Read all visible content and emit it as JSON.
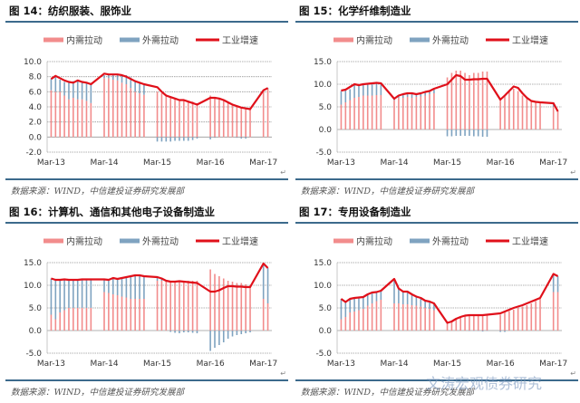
{
  "legend": {
    "domestic": "内需拉动",
    "external": "外需拉动",
    "industry": "工业增速"
  },
  "colors": {
    "domestic": "#f28c8c",
    "external": "#7fa3c0",
    "industry": "#e0101a",
    "rule": "#3c6a8c"
  },
  "source_text": "数据来源：WIND，中信建投证券研究发展部",
  "return_mark": "↵",
  "watermark": "文涛宏观债券研究",
  "x_ticks": [
    "Mar-13",
    "Mar-14",
    "Mar-15",
    "Mar-16",
    "Mar-17"
  ],
  "chart_data": [
    {
      "type": "bar",
      "title": "图 14：纺织服装、服饰业",
      "ylim": [
        -2,
        10
      ],
      "yticks": [
        "10.0",
        "8.0",
        "6.0",
        "4.0",
        "2.0",
        "0.0",
        "-2.0"
      ],
      "ytick_values": [
        10,
        8,
        6,
        4,
        2,
        0,
        -2
      ],
      "months": [
        "Mar-13",
        "Apr-13",
        "May-13",
        "Jun-13",
        "Jul-13",
        "Aug-13",
        "Sep-13",
        "Oct-13",
        "Nov-13",
        "Dec-13",
        "Mar-14",
        "Apr-14",
        "May-14",
        "Jun-14",
        "Jul-14",
        "Aug-14",
        "Sep-14",
        "Oct-14",
        "Nov-14",
        "Dec-14",
        "Mar-15",
        "Apr-15",
        "May-15",
        "Jun-15",
        "Jul-15",
        "Aug-15",
        "Sep-15",
        "Oct-15",
        "Nov-15",
        "Dec-15",
        "Mar-16",
        "Apr-16",
        "May-16",
        "Jun-16",
        "Jul-16",
        "Aug-16",
        "Sep-16",
        "Oct-16",
        "Nov-16",
        "Dec-16",
        "Mar-17",
        "Apr-17"
      ],
      "series": [
        {
          "name": "内需拉动",
          "values": [
            6.2,
            6.0,
            6.0,
            5.5,
            5.0,
            5.2,
            5.0,
            5.0,
            4.8,
            4.5,
            7.8,
            7.8,
            7.6,
            7.5,
            7.2,
            7.0,
            6.5,
            6.0,
            5.8,
            5.6,
            6.0,
            5.8,
            5.6,
            5.4,
            5.2,
            5.0,
            4.9,
            4.8,
            4.7,
            4.5,
            5.5,
            5.3,
            5.1,
            4.9,
            4.6,
            4.3,
            4.1,
            4.0,
            3.9,
            3.8,
            6.2,
            6.4
          ]
        },
        {
          "name": "外需拉动",
          "values": [
            1.5,
            2.0,
            1.6,
            1.8,
            2.2,
            2.2,
            2.4,
            2.3,
            2.4,
            2.6,
            0.4,
            0.5,
            0.7,
            0.8,
            1.0,
            1.2,
            1.4,
            1.5,
            1.4,
            1.3,
            -0.6,
            -0.6,
            -0.6,
            -0.6,
            -0.5,
            -0.5,
            -0.5,
            -0.5,
            -0.4,
            -0.2,
            -0.3,
            -0.1,
            0,
            0,
            0,
            0,
            -0.1,
            -0.2,
            -0.2,
            0,
            0,
            0.1
          ]
        },
        {
          "name": "工业增速",
          "values": [
            7.7,
            8.1,
            7.8,
            7.5,
            7.3,
            7.2,
            7.5,
            7.3,
            7.2,
            7.0,
            8.4,
            8.3,
            8.3,
            8.3,
            8.2,
            8.0,
            7.7,
            7.4,
            7.2,
            7.0,
            6.6,
            6.0,
            5.5,
            5.3,
            5.1,
            4.9,
            4.9,
            4.7,
            4.5,
            4.3,
            5.2,
            5.2,
            5.1,
            4.9,
            4.6,
            4.3,
            4.1,
            3.9,
            3.8,
            3.7,
            6.2,
            6.5
          ]
        }
      ]
    },
    {
      "type": "bar",
      "title": "图 15：化学纤维制造业",
      "ylim": [
        -5,
        15
      ],
      "yticks": [
        "15.0",
        "10.0",
        "5.0",
        "0.0",
        "-5.0"
      ],
      "ytick_values": [
        15,
        10,
        5,
        0,
        -5
      ],
      "months": [
        "Mar-13",
        "Apr-13",
        "May-13",
        "Jun-13",
        "Jul-13",
        "Aug-13",
        "Sep-13",
        "Oct-13",
        "Nov-13",
        "Dec-13",
        "Mar-14",
        "Apr-14",
        "May-14",
        "Jun-14",
        "Jul-14",
        "Aug-14",
        "Sep-14",
        "Oct-14",
        "Nov-14",
        "Dec-14",
        "Mar-15",
        "Apr-15",
        "May-15",
        "Jun-15",
        "Jul-15",
        "Aug-15",
        "Sep-15",
        "Oct-15",
        "Nov-15",
        "Dec-15",
        "Mar-16",
        "Apr-16",
        "May-16",
        "Jun-16",
        "Jul-16",
        "Aug-16",
        "Sep-16",
        "Oct-16",
        "Nov-16",
        "Dec-16",
        "Mar-17",
        "Apr-17"
      ],
      "series": [
        {
          "name": "内需拉动",
          "values": [
            5.5,
            6.0,
            6.5,
            7.0,
            7.2,
            7.5,
            7.5,
            7.5,
            7.6,
            7.6,
            6.5,
            7.0,
            7.0,
            7.2,
            7.0,
            7.2,
            7.3,
            7.5,
            7.8,
            8.0,
            11.5,
            12.5,
            13.0,
            13.0,
            12.5,
            12.0,
            12.5,
            12.5,
            12.8,
            12.8,
            6.5,
            7.5,
            8.5,
            9.0,
            8.5,
            7.5,
            7.0,
            6.5,
            6.0,
            5.8,
            5.0,
            4.0
          ]
        },
        {
          "name": "外需拉动",
          "values": [
            3.0,
            2.8,
            2.4,
            2.8,
            2.5,
            2.5,
            2.5,
            2.6,
            2.6,
            2.8,
            0.5,
            0.6,
            0.8,
            0.8,
            1.0,
            0.8,
            0.9,
            0.9,
            0.8,
            0.8,
            -1.5,
            -1.5,
            -1.4,
            -1.4,
            -1.4,
            -1.4,
            -1.5,
            -1.5,
            -1.6,
            -1.6,
            0,
            0,
            0,
            0,
            0,
            0,
            0,
            0,
            0,
            0.2,
            1.0,
            0
          ]
        },
        {
          "name": "工业增速",
          "values": [
            8.6,
            8.8,
            9.4,
            10.0,
            9.8,
            10.0,
            10.1,
            10.2,
            10.3,
            10.2,
            6.8,
            7.5,
            7.8,
            8.0,
            8.0,
            7.8,
            8.0,
            8.3,
            8.5,
            9.0,
            10.0,
            11.0,
            12.0,
            11.8,
            11.0,
            11.0,
            11.1,
            11.1,
            11.2,
            11.2,
            6.6,
            7.5,
            8.5,
            9.5,
            9.2,
            8.0,
            7.0,
            6.3,
            6.1,
            6.0,
            5.8,
            4.0
          ]
        }
      ]
    },
    {
      "type": "bar",
      "title": "图 16：计算机、通信和其他电子设备制造业",
      "ylim": [
        -5,
        15
      ],
      "yticks": [
        "15.0",
        "10.0",
        "5.0",
        "0.0",
        "-5.0"
      ],
      "ytick_values": [
        15,
        10,
        5,
        0,
        -5
      ],
      "months": [
        "Mar-13",
        "Apr-13",
        "May-13",
        "Jun-13",
        "Jul-13",
        "Aug-13",
        "Sep-13",
        "Oct-13",
        "Nov-13",
        "Dec-13",
        "Mar-14",
        "Apr-14",
        "May-14",
        "Jun-14",
        "Jul-14",
        "Aug-14",
        "Sep-14",
        "Oct-14",
        "Nov-14",
        "Dec-14",
        "Mar-15",
        "Apr-15",
        "May-15",
        "Jun-15",
        "Jul-15",
        "Aug-15",
        "Sep-15",
        "Oct-15",
        "Nov-15",
        "Dec-15",
        "Mar-16",
        "Apr-16",
        "May-16",
        "Jun-16",
        "Jul-16",
        "Aug-16",
        "Sep-16",
        "Oct-16",
        "Nov-16",
        "Dec-16",
        "Mar-17",
        "Apr-17"
      ],
      "series": [
        {
          "name": "内需拉动",
          "values": [
            3.5,
            2.5,
            4.0,
            4.5,
            5.0,
            5.0,
            5.0,
            5.0,
            5.0,
            5.0,
            8.5,
            8.3,
            8.0,
            7.8,
            7.5,
            7.3,
            7.0,
            7.0,
            7.0,
            7.0,
            11.0,
            11.0,
            11.0,
            11.0,
            11.0,
            11.0,
            11.0,
            11.0,
            11.0,
            11.0,
            13.5,
            12.5,
            12.0,
            11.5,
            11.0,
            10.8,
            10.5,
            10.5,
            10.2,
            10.0,
            7.0,
            6.0
          ]
        },
        {
          "name": "外需拉动",
          "values": [
            8.0,
            8.8,
            7.2,
            6.6,
            6.2,
            6.2,
            6.2,
            6.3,
            6.3,
            6.3,
            2.8,
            2.9,
            3.4,
            3.4,
            4.0,
            4.4,
            4.8,
            5.2,
            5.4,
            5.2,
            0.8,
            0.4,
            0,
            -0.3,
            -0.5,
            -0.6,
            -0.4,
            -0.4,
            -0.5,
            -0.6,
            -4.5,
            -3.8,
            -3.2,
            -2.6,
            -1.8,
            -1.3,
            -1.0,
            -0.8,
            -0.6,
            -0.4,
            7.8,
            7.8
          ]
        },
        {
          "name": "工业增速",
          "values": [
            11.5,
            11.2,
            11.2,
            11.3,
            11.2,
            11.2,
            11.2,
            11.3,
            11.3,
            11.3,
            11.3,
            11.2,
            11.6,
            11.4,
            11.6,
            11.8,
            12.0,
            12.2,
            12.2,
            12.0,
            11.8,
            11.5,
            11.0,
            10.8,
            10.8,
            10.9,
            10.8,
            10.7,
            10.6,
            10.5,
            8.6,
            8.6,
            8.9,
            9.4,
            9.8,
            9.8,
            9.7,
            9.7,
            9.6,
            9.6,
            14.8,
            13.8
          ]
        }
      ]
    },
    {
      "type": "bar",
      "title": "图 17：专用设备制造业",
      "ylim": [
        -5,
        15
      ],
      "yticks": [
        "15.0",
        "10.0",
        "5.0",
        "0.0",
        "-5.0"
      ],
      "ytick_values": [
        15,
        10,
        5,
        0,
        -5
      ],
      "months": [
        "Mar-13",
        "Apr-13",
        "May-13",
        "Jun-13",
        "Jul-13",
        "Aug-13",
        "Sep-13",
        "Oct-13",
        "Nov-13",
        "Dec-13",
        "Mar-14",
        "Apr-14",
        "May-14",
        "Jun-14",
        "Jul-14",
        "Aug-14",
        "Sep-14",
        "Oct-14",
        "Nov-14",
        "Dec-14",
        "Mar-15",
        "Apr-15",
        "May-15",
        "Jun-15",
        "Jul-15",
        "Aug-15",
        "Sep-15",
        "Oct-15",
        "Nov-15",
        "Dec-15",
        "Mar-16",
        "Apr-16",
        "May-16",
        "Jun-16",
        "Jul-16",
        "Aug-16",
        "Sep-16",
        "Oct-16",
        "Nov-16",
        "Dec-16",
        "Mar-17",
        "Apr-17"
      ],
      "series": [
        {
          "name": "内需拉动",
          "values": [
            2.5,
            3.0,
            4.0,
            4.2,
            4.5,
            4.8,
            5.5,
            6.0,
            6.5,
            6.8,
            6.0,
            6.0,
            5.8,
            5.8,
            5.6,
            5.5,
            5.3,
            5.0,
            4.8,
            4.5,
            1.5,
            1.8,
            2.5,
            3.0,
            3.3,
            3.5,
            3.5,
            3.5,
            3.5,
            3.5,
            3.5,
            4.0,
            4.3,
            4.6,
            5.0,
            5.3,
            5.6,
            6.0,
            6.5,
            7.0,
            8.5,
            8.5
          ]
        },
        {
          "name": "外需拉动",
          "values": [
            4.5,
            3.3,
            3.0,
            3.0,
            2.9,
            2.6,
            2.5,
            2.2,
            2.0,
            2.0,
            5.4,
            3.3,
            2.8,
            2.8,
            2.4,
            2.0,
            1.8,
            1.6,
            1.6,
            1.4,
            0.2,
            0.2,
            0.1,
            0,
            0,
            -0.1,
            -0.1,
            -0.1,
            -0.2,
            -0.1,
            -0.3,
            -0.3,
            0,
            0,
            0,
            0,
            0,
            0,
            0,
            0,
            4.0,
            3.5
          ]
        },
        {
          "name": "工业增速",
          "values": [
            7.0,
            6.3,
            7.0,
            7.2,
            7.3,
            7.4,
            8.0,
            8.4,
            8.5,
            8.8,
            11.4,
            9.3,
            8.6,
            8.6,
            8.0,
            7.5,
            7.2,
            6.6,
            6.4,
            6.0,
            1.7,
            2.0,
            2.6,
            3.0,
            3.3,
            3.4,
            3.4,
            3.4,
            3.4,
            3.5,
            3.8,
            4.2,
            4.6,
            5.0,
            5.3,
            5.6,
            6.0,
            6.4,
            6.8,
            7.2,
            12.5,
            12.0
          ]
        }
      ]
    }
  ]
}
